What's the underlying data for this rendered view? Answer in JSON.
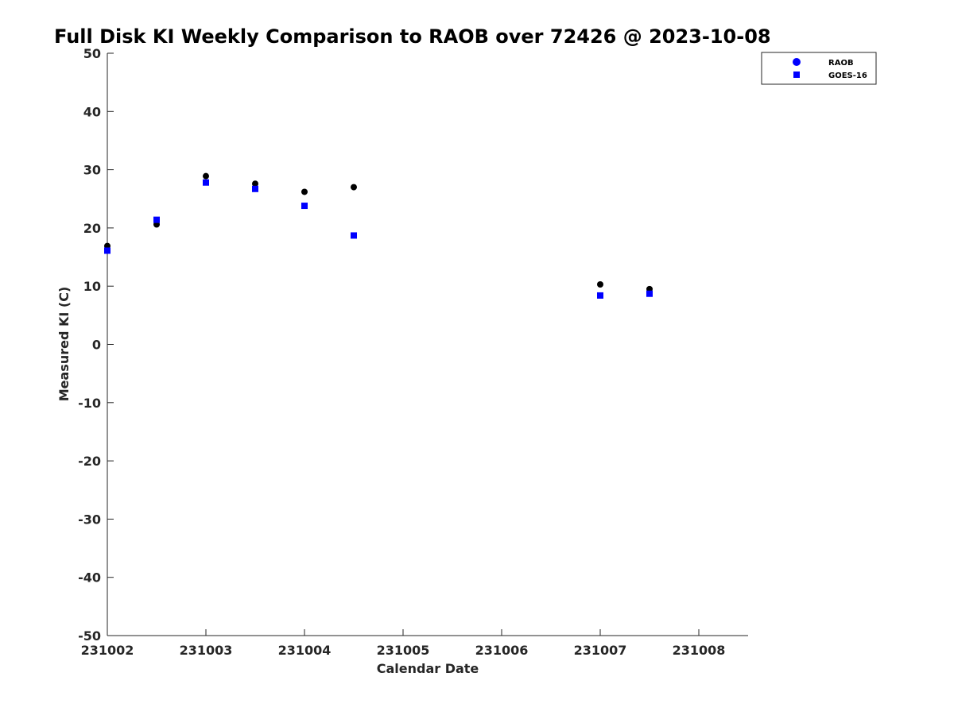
{
  "chart_data": {
    "type": "scatter",
    "title": "Full Disk KI Weekly Comparison to RAOB over 72426 @ 2023-10-08",
    "xlabel": "Calendar Date",
    "ylabel": "Measured KI (C)",
    "xlim": [
      0,
      6.5
    ],
    "ylim": [
      -50,
      50
    ],
    "x_ticks": [
      {
        "value": 0,
        "label": "231002"
      },
      {
        "value": 1,
        "label": "231003"
      },
      {
        "value": 2,
        "label": "231004"
      },
      {
        "value": 3,
        "label": "231005"
      },
      {
        "value": 4,
        "label": "231006"
      },
      {
        "value": 5,
        "label": "231007"
      },
      {
        "value": 6,
        "label": "231008"
      }
    ],
    "y_ticks": [
      {
        "value": 50,
        "label": "50"
      },
      {
        "value": 40,
        "label": "40"
      },
      {
        "value": 30,
        "label": "30"
      },
      {
        "value": 20,
        "label": "20"
      },
      {
        "value": 10,
        "label": "10"
      },
      {
        "value": 0,
        "label": "0"
      },
      {
        "value": -10,
        "label": "-10"
      },
      {
        "value": -20,
        "label": "-20"
      },
      {
        "value": -30,
        "label": "-30"
      },
      {
        "value": -40,
        "label": "-40"
      },
      {
        "value": -50,
        "label": "-50"
      }
    ],
    "grid": false,
    "legend_position": "top-right",
    "series": [
      {
        "name": "RAOB",
        "marker": "circle",
        "color": "#000000",
        "legend_color": "#0000ff",
        "points": [
          {
            "x": 0,
            "y": 16.9
          },
          {
            "x": 0.5,
            "y": 20.6
          },
          {
            "x": 1,
            "y": 28.9
          },
          {
            "x": 1.5,
            "y": 27.6
          },
          {
            "x": 2,
            "y": 26.2
          },
          {
            "x": 2.5,
            "y": 27.0
          },
          {
            "x": 5,
            "y": 10.3
          },
          {
            "x": 5.5,
            "y": 9.5
          }
        ]
      },
      {
        "name": "GOES-16",
        "marker": "square",
        "color": "#0000ff",
        "legend_color": "#0000ff",
        "points": [
          {
            "x": 0,
            "y": 16.1
          },
          {
            "x": 0.5,
            "y": 21.4
          },
          {
            "x": 1,
            "y": 27.8
          },
          {
            "x": 1.5,
            "y": 26.7
          },
          {
            "x": 2,
            "y": 23.8
          },
          {
            "x": 2.5,
            "y": 18.7
          },
          {
            "x": 5,
            "y": 8.4
          },
          {
            "x": 5.5,
            "y": 8.7
          }
        ]
      }
    ]
  }
}
